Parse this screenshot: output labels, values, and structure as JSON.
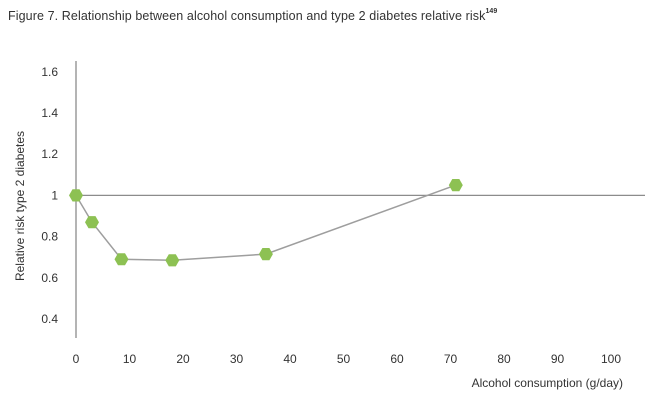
{
  "figure": {
    "title": "Figure 7. Relationship between alcohol consumption and type 2 diabetes relative risk",
    "ref": "149"
  },
  "chart_data": {
    "type": "line",
    "xlabel": "Alcohol consumption (g/day)",
    "ylabel": "Relative risk type 2 diabetes",
    "xlim": [
      0,
      107
    ],
    "ylim": [
      0.3,
      1.65
    ],
    "x_ticks": [
      0,
      10,
      20,
      30,
      40,
      50,
      60,
      70,
      80,
      90,
      100
    ],
    "y_ticks": [
      0.4,
      0.6,
      0.8,
      1,
      1.2,
      1.4,
      1.6
    ],
    "x_tick_labels": [
      "0",
      "10",
      "20",
      "30",
      "40",
      "50",
      "60",
      "70",
      "80",
      "90",
      "100"
    ],
    "y_tick_labels": [
      "0.4",
      "0.6",
      "0.8",
      "1",
      "1.2",
      "1.4",
      "1.6"
    ],
    "reference_line": 1,
    "grid": false,
    "series": [
      {
        "x": [
          0,
          3,
          8.5,
          18,
          35.5,
          71
        ],
        "y": [
          1.0,
          0.87,
          0.69,
          0.685,
          0.715,
          1.05
        ]
      }
    ],
    "colors": {
      "marker": "#8dc153",
      "line": "#9e9e9e",
      "axis": "#8c8c8c"
    }
  }
}
